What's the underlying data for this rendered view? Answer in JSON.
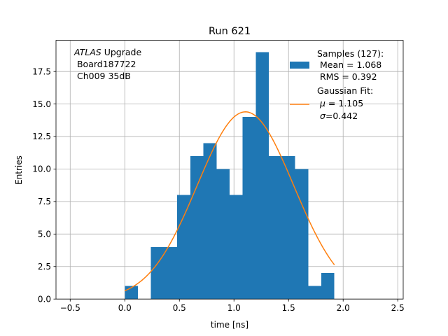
{
  "chart_data": {
    "type": "bar",
    "title": "Run 621",
    "xlabel": "time [ns]",
    "ylabel": "Entries",
    "xlim": [
      -0.63,
      2.55
    ],
    "ylim": [
      0,
      19.9
    ],
    "grid": true,
    "xticks": [
      -0.5,
      0.0,
      0.5,
      1.0,
      1.5,
      2.0,
      2.5
    ],
    "xtick_labels": [
      "−0.5",
      "0.0",
      "0.5",
      "1.0",
      "1.5",
      "2.0",
      "2.5"
    ],
    "yticks": [
      0.0,
      2.5,
      5.0,
      7.5,
      10.0,
      12.5,
      15.0,
      17.5
    ],
    "ytick_labels": [
      "0.0",
      "2.5",
      "5.0",
      "7.5",
      "10.0",
      "12.5",
      "15.0",
      "17.5"
    ],
    "histogram": {
      "name": "Samples (127)",
      "color": "#1f77b4",
      "bin_edges": [
        0.0,
        0.12,
        0.24,
        0.36,
        0.48,
        0.6,
        0.72,
        0.84,
        0.96,
        1.08,
        1.2,
        1.32,
        1.44,
        1.56,
        1.68,
        1.8,
        1.92
      ],
      "values": [
        1,
        0,
        4,
        4,
        8,
        11,
        12,
        10,
        8,
        14,
        19,
        11,
        11,
        10,
        1,
        2
      ]
    },
    "fit": {
      "name": "Gaussian Fit",
      "color": "#ff7f0e",
      "x_range": [
        0.0,
        1.92
      ],
      "mu": 1.105,
      "sigma": 0.442,
      "amplitude": 14.4
    },
    "annotation": {
      "line1_italic": "ATLAS",
      "line1_rest": " Upgrade",
      "line2": " Board187722",
      "line3": " Ch009 35dB"
    },
    "legend": {
      "placement": "top-right",
      "samples_lines": [
        "Samples (127):",
        " Mean = 1.068",
        " RMS = 0.392"
      ],
      "fit_line1": "Gaussian Fit:",
      "fit_mu_symbol": "μ",
      "fit_mu_value": " = 1.105",
      "fit_sigma_symbol": "σ",
      "fit_sigma_value": "=0.442"
    }
  }
}
